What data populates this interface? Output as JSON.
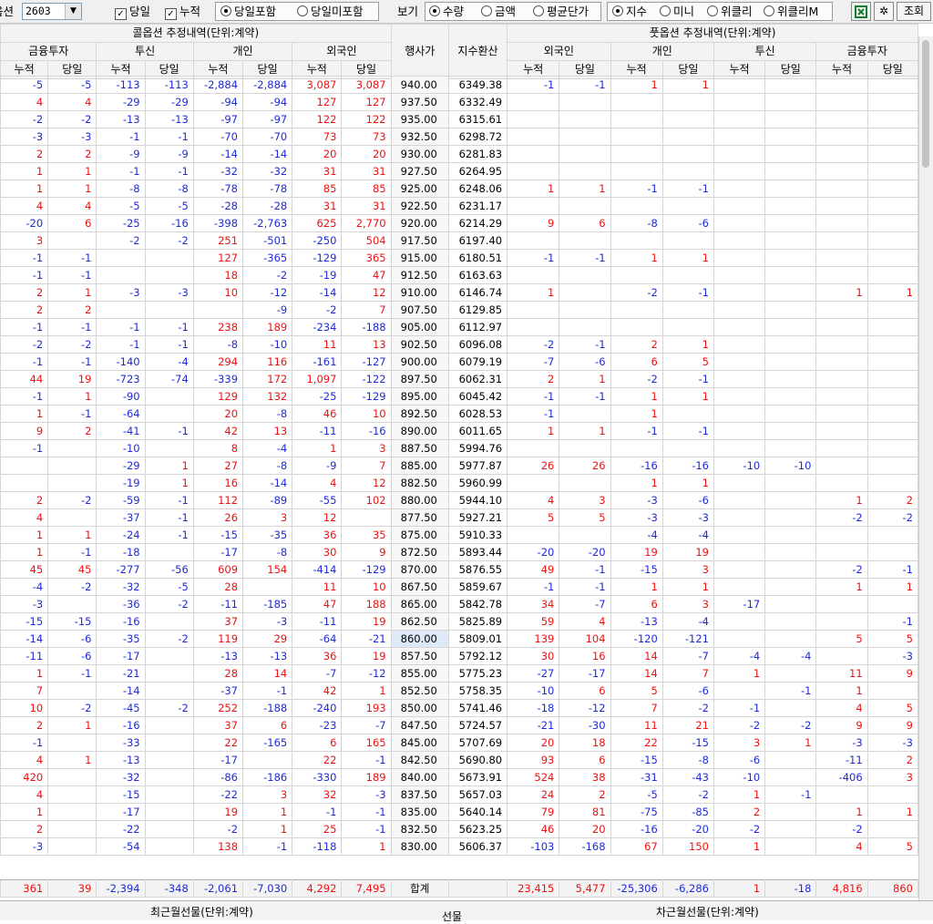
{
  "toolbar": {
    "option_label": "옵션",
    "option_value": "2603",
    "check_today": "당일",
    "check_cumul": "누적",
    "incl_today": "당일포함",
    "excl_today": "당일미포함",
    "view_label": "보기",
    "view_qty": "수량",
    "view_amount": "금액",
    "view_avg": "평균단가",
    "idx_index": "지수",
    "idx_mini": "미니",
    "idx_weekly": "위클리",
    "idx_weekly_m": "위클리M",
    "search_button": "조회"
  },
  "header": {
    "call_title": "콜옵션 추정내역(단위:계약)",
    "put_title": "풋옵션 추정내역(단위:계약)",
    "call_groups": [
      "금융투자",
      "투신",
      "개인",
      "외국인"
    ],
    "put_groups": [
      "외국인",
      "개인",
      "투신",
      "금융투자"
    ],
    "strike": "행사가",
    "index_conv": "지수환산",
    "cumul": "누적",
    "today": "당일"
  },
  "rows": [
    [
      "-5",
      "-5",
      "-113",
      "-113",
      "-2,884",
      "-2,884",
      "3,087",
      "3,087",
      "940.00",
      "6349.38",
      "-1",
      "-1",
      "1",
      "1",
      "",
      "",
      "",
      ""
    ],
    [
      "4",
      "4",
      "-29",
      "-29",
      "-94",
      "-94",
      "127",
      "127",
      "937.50",
      "6332.49",
      "",
      "",
      "",
      "",
      "",
      "",
      "",
      ""
    ],
    [
      "-2",
      "-2",
      "-13",
      "-13",
      "-97",
      "-97",
      "122",
      "122",
      "935.00",
      "6315.61",
      "",
      "",
      "",
      "",
      "",
      "",
      "",
      ""
    ],
    [
      "-3",
      "-3",
      "-1",
      "-1",
      "-70",
      "-70",
      "73",
      "73",
      "932.50",
      "6298.72",
      "",
      "",
      "",
      "",
      "",
      "",
      "",
      ""
    ],
    [
      "2",
      "2",
      "-9",
      "-9",
      "-14",
      "-14",
      "20",
      "20",
      "930.00",
      "6281.83",
      "",
      "",
      "",
      "",
      "",
      "",
      "",
      ""
    ],
    [
      "1",
      "1",
      "-1",
      "-1",
      "-32",
      "-32",
      "31",
      "31",
      "927.50",
      "6264.95",
      "",
      "",
      "",
      "",
      "",
      "",
      "",
      ""
    ],
    [
      "1",
      "1",
      "-8",
      "-8",
      "-78",
      "-78",
      "85",
      "85",
      "925.00",
      "6248.06",
      "1",
      "1",
      "-1",
      "-1",
      "",
      "",
      "",
      ""
    ],
    [
      "4",
      "4",
      "-5",
      "-5",
      "-28",
      "-28",
      "31",
      "31",
      "922.50",
      "6231.17",
      "",
      "",
      "",
      "",
      "",
      "",
      "",
      ""
    ],
    [
      "-20",
      "6",
      "-25",
      "-16",
      "-398",
      "-2,763",
      "625",
      "2,770",
      "920.00",
      "6214.29",
      "9",
      "6",
      "-8",
      "-6",
      "",
      "",
      "",
      ""
    ],
    [
      "3",
      "",
      "-2",
      "-2",
      "251",
      "-501",
      "-250",
      "504",
      "917.50",
      "6197.40",
      "",
      "",
      "",
      "",
      "",
      "",
      "",
      ""
    ],
    [
      "-1",
      "-1",
      "",
      "",
      "127",
      "-365",
      "-129",
      "365",
      "915.00",
      "6180.51",
      "-1",
      "-1",
      "1",
      "1",
      "",
      "",
      "",
      ""
    ],
    [
      "-1",
      "-1",
      "",
      "",
      "18",
      "-2",
      "-19",
      "47",
      "912.50",
      "6163.63",
      "",
      "",
      "",
      "",
      "",
      "",
      "",
      ""
    ],
    [
      "2",
      "1",
      "-3",
      "-3",
      "10",
      "-12",
      "-14",
      "12",
      "910.00",
      "6146.74",
      "1",
      "",
      "-2",
      "-1",
      "",
      "",
      "1",
      "1"
    ],
    [
      "2",
      "2",
      "",
      "",
      "",
      "-9",
      "-2",
      "7",
      "907.50",
      "6129.85",
      "",
      "",
      "",
      "",
      "",
      "",
      "",
      ""
    ],
    [
      "-1",
      "-1",
      "-1",
      "-1",
      "238",
      "189",
      "-234",
      "-188",
      "905.00",
      "6112.97",
      "",
      "",
      "",
      "",
      "",
      "",
      "",
      ""
    ],
    [
      "-2",
      "-2",
      "-1",
      "-1",
      "-8",
      "-10",
      "11",
      "13",
      "902.50",
      "6096.08",
      "-2",
      "-1",
      "2",
      "1",
      "",
      "",
      "",
      ""
    ],
    [
      "-1",
      "-1",
      "-140",
      "-4",
      "294",
      "116",
      "-161",
      "-127",
      "900.00",
      "6079.19",
      "-7",
      "-6",
      "6",
      "5",
      "",
      "",
      "",
      ""
    ],
    [
      "44",
      "19",
      "-723",
      "-74",
      "-339",
      "172",
      "1,097",
      "-122",
      "897.50",
      "6062.31",
      "2",
      "1",
      "-2",
      "-1",
      "",
      "",
      "",
      ""
    ],
    [
      "-1",
      "1",
      "-90",
      "",
      "129",
      "132",
      "-25",
      "-129",
      "895.00",
      "6045.42",
      "-1",
      "-1",
      "1",
      "1",
      "",
      "",
      "",
      ""
    ],
    [
      "1",
      "-1",
      "-64",
      "",
      "20",
      "-8",
      "46",
      "10",
      "892.50",
      "6028.53",
      "-1",
      "",
      "1",
      "",
      "",
      "",
      "",
      ""
    ],
    [
      "9",
      "2",
      "-41",
      "-1",
      "42",
      "13",
      "-11",
      "-16",
      "890.00",
      "6011.65",
      "1",
      "1",
      "-1",
      "-1",
      "",
      "",
      "",
      ""
    ],
    [
      "-1",
      "",
      "-10",
      "",
      "8",
      "-4",
      "1",
      "3",
      "887.50",
      "5994.76",
      "",
      "",
      "",
      "",
      "",
      "",
      "",
      ""
    ],
    [
      "",
      "",
      "-29",
      "1",
      "27",
      "-8",
      "-9",
      "7",
      "885.00",
      "5977.87",
      "26",
      "26",
      "-16",
      "-16",
      "-10",
      "-10",
      "",
      ""
    ],
    [
      "",
      "",
      "-19",
      "1",
      "16",
      "-14",
      "4",
      "12",
      "882.50",
      "5960.99",
      "",
      "",
      "1",
      "1",
      "",
      "",
      "",
      ""
    ],
    [
      "2",
      "-2",
      "-59",
      "-1",
      "112",
      "-89",
      "-55",
      "102",
      "880.00",
      "5944.10",
      "4",
      "3",
      "-3",
      "-6",
      "",
      "",
      "1",
      "2"
    ],
    [
      "4",
      "",
      "-37",
      "-1",
      "26",
      "3",
      "12",
      "",
      "877.50",
      "5927.21",
      "5",
      "5",
      "-3",
      "-3",
      "",
      "",
      "-2",
      "-2"
    ],
    [
      "1",
      "1",
      "-24",
      "-1",
      "-15",
      "-35",
      "36",
      "35",
      "875.00",
      "5910.33",
      "",
      "",
      "-4",
      "-4",
      "",
      "",
      "",
      ""
    ],
    [
      "1",
      "-1",
      "-18",
      "",
      "-17",
      "-8",
      "30",
      "9",
      "872.50",
      "5893.44",
      "-20",
      "-20",
      "19",
      "19",
      "",
      "",
      "",
      ""
    ],
    [
      "45",
      "45",
      "-277",
      "-56",
      "609",
      "154",
      "-414",
      "-129",
      "870.00",
      "5876.55",
      "49",
      "-1",
      "-15",
      "3",
      "",
      "",
      "-2",
      "-1"
    ],
    [
      "-4",
      "-2",
      "-32",
      "-5",
      "28",
      "",
      "11",
      "10",
      "867.50",
      "5859.67",
      "-1",
      "-1",
      "1",
      "1",
      "",
      "",
      "1",
      "1"
    ],
    [
      "-3",
      "",
      "-36",
      "-2",
      "-11",
      "-185",
      "47",
      "188",
      "865.00",
      "5842.78",
      "34",
      "-7",
      "6",
      "3",
      "-17",
      "",
      "",
      ""
    ],
    [
      "-15",
      "-15",
      "-16",
      "",
      "37",
      "-3",
      "-11",
      "19",
      "862.50",
      "5825.89",
      "59",
      "4",
      "-13",
      "-4",
      "",
      "",
      "",
      "-1"
    ],
    [
      "-14",
      "-6",
      "-35",
      "-2",
      "119",
      "29",
      "-64",
      "-21",
      "860.00",
      "5809.01",
      "139",
      "104",
      "-120",
      "-121",
      "",
      "",
      "5",
      "5"
    ],
    [
      "-11",
      "-6",
      "-17",
      "",
      "-13",
      "-13",
      "36",
      "19",
      "857.50",
      "5792.12",
      "30",
      "16",
      "14",
      "-7",
      "-4",
      "-4",
      "",
      "-3"
    ],
    [
      "1",
      "-1",
      "-21",
      "",
      "28",
      "14",
      "-7",
      "-12",
      "855.00",
      "5775.23",
      "-27",
      "-17",
      "14",
      "7",
      "1",
      "",
      "11",
      "9"
    ],
    [
      "7",
      "",
      "-14",
      "",
      "-37",
      "-1",
      "42",
      "1",
      "852.50",
      "5758.35",
      "-10",
      "6",
      "5",
      "-6",
      "",
      "-1",
      "1",
      ""
    ],
    [
      "10",
      "-2",
      "-45",
      "-2",
      "252",
      "-188",
      "-240",
      "193",
      "850.00",
      "5741.46",
      "-18",
      "-12",
      "7",
      "-2",
      "-1",
      "",
      "4",
      "5"
    ],
    [
      "2",
      "1",
      "-16",
      "",
      "37",
      "6",
      "-23",
      "-7",
      "847.50",
      "5724.57",
      "-21",
      "-30",
      "11",
      "21",
      "-2",
      "-2",
      "9",
      "9"
    ],
    [
      "-1",
      "",
      "-33",
      "",
      "22",
      "-165",
      "6",
      "165",
      "845.00",
      "5707.69",
      "20",
      "18",
      "22",
      "-15",
      "3",
      "1",
      "-3",
      "-3"
    ],
    [
      "4",
      "1",
      "-13",
      "",
      "-17",
      "",
      "22",
      "-1",
      "842.50",
      "5690.80",
      "93",
      "6",
      "-15",
      "-8",
      "-6",
      "",
      "-11",
      "2"
    ],
    [
      "420",
      "",
      "-32",
      "",
      "-86",
      "-186",
      "-330",
      "189",
      "840.00",
      "5673.91",
      "524",
      "38",
      "-31",
      "-43",
      "-10",
      "",
      "-406",
      "3"
    ],
    [
      "4",
      "",
      "-15",
      "",
      "-22",
      "3",
      "32",
      "-3",
      "837.50",
      "5657.03",
      "24",
      "2",
      "-5",
      "-2",
      "1",
      "-1",
      "",
      ""
    ],
    [
      "1",
      "",
      "-17",
      "",
      "19",
      "1",
      "-1",
      "-1",
      "835.00",
      "5640.14",
      "79",
      "81",
      "-75",
      "-85",
      "2",
      "",
      "1",
      "1"
    ],
    [
      "2",
      "",
      "-22",
      "",
      "-2",
      "1",
      "25",
      "-1",
      "832.50",
      "5623.25",
      "46",
      "20",
      "-16",
      "-20",
      "-2",
      "",
      "-2",
      ""
    ],
    [
      "-3",
      "",
      "-54",
      "",
      "138",
      "-1",
      "-118",
      "1",
      "830.00",
      "5606.37",
      "-103",
      "-168",
      "67",
      "150",
      "1",
      "",
      "4",
      "5"
    ]
  ],
  "highlight_strike": "860.00",
  "total": [
    "361",
    "39",
    "-2,394",
    "-348",
    "-2,061",
    "-7,030",
    "4,292",
    "7,495",
    "합계",
    "",
    "23,415",
    "5,477",
    "-25,306",
    "-6,286",
    "1",
    "-18",
    "4,816",
    "860"
  ],
  "bottom": {
    "recent_month": "최근월선물(단위:계약)",
    "futures": "선물",
    "next_month": "차근월선물(단위:계약)"
  },
  "colors": {
    "positive": "#ee1111",
    "negative": "#1e2bd8",
    "highlight": "#dde9f7"
  }
}
